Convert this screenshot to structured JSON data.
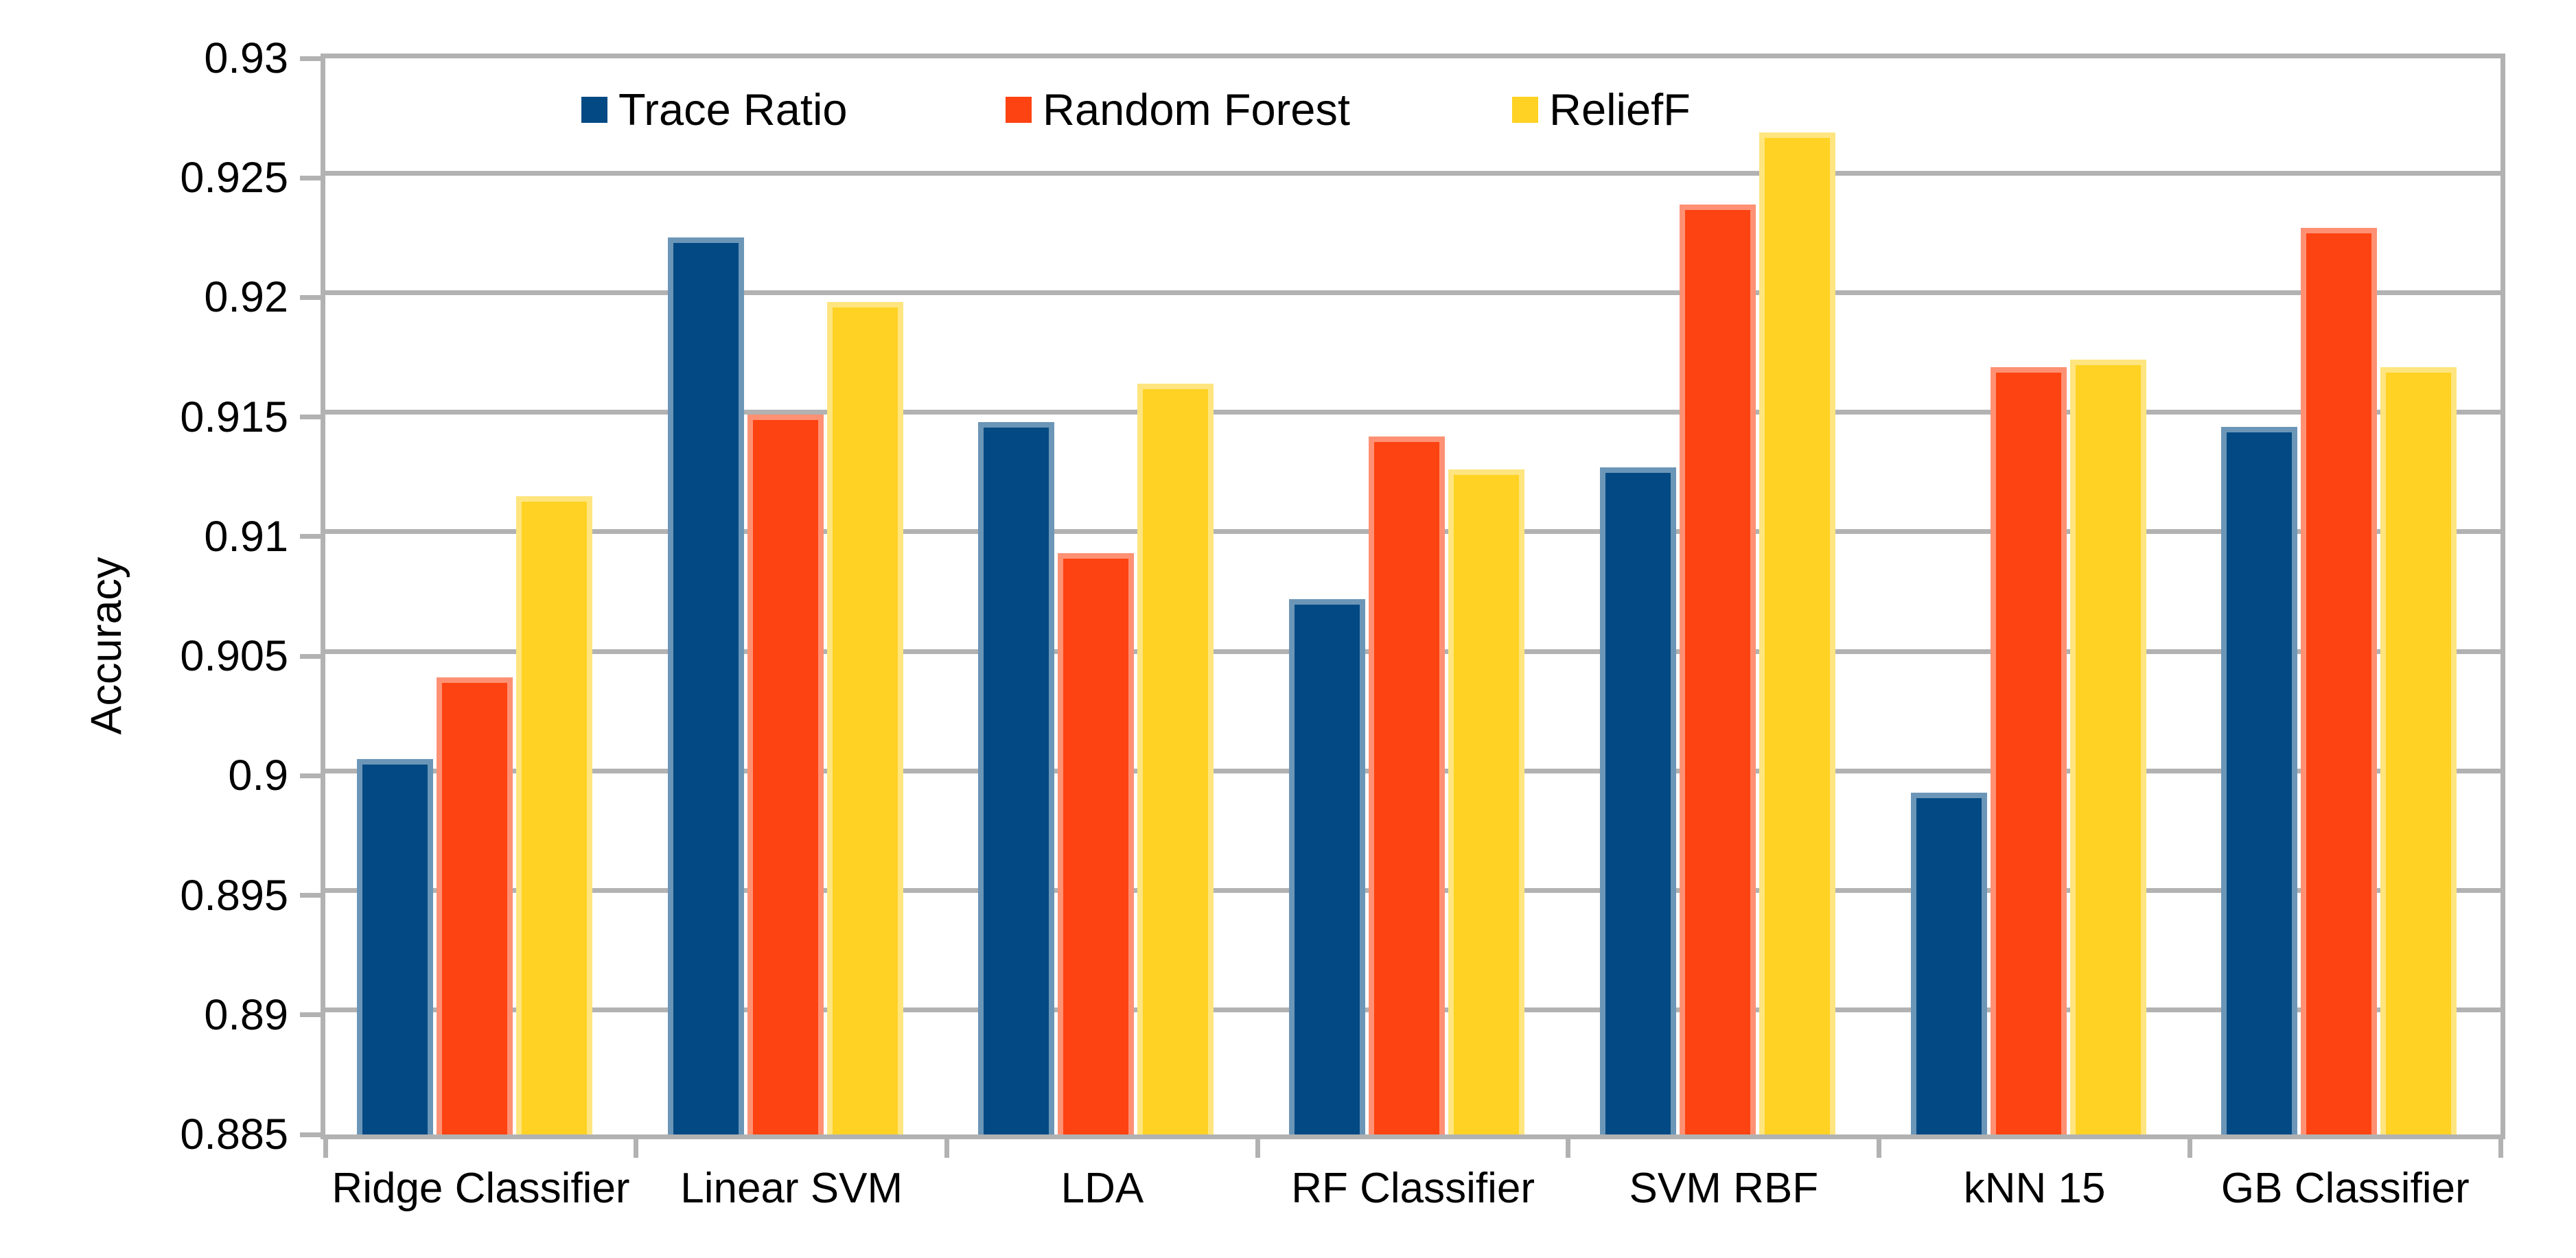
{
  "chart_data": {
    "type": "bar",
    "title": "",
    "xlabel": "",
    "ylabel": "Accuracy",
    "categories": [
      "Ridge Classifier",
      "Linear SVM",
      "LDA",
      "RF Classifier",
      "SVM RBF",
      "kNN 15",
      "GB Classifier"
    ],
    "series": [
      {
        "name": "Trace Ratio",
        "color": "#034a84",
        "values": [
          0.9007,
          0.9225,
          0.9148,
          0.9074,
          0.9129,
          0.8993,
          0.9146
        ]
      },
      {
        "name": "Random Forest",
        "color": "#fd4311",
        "values": [
          0.9041,
          0.9151,
          0.9093,
          0.9142,
          0.9239,
          0.9171,
          0.9229
        ]
      },
      {
        "name": "ReliefF",
        "color": "#ffd223",
        "values": [
          0.9117,
          0.9198,
          0.9164,
          0.9128,
          0.9269,
          0.9174,
          0.9171
        ]
      }
    ],
    "ylim": [
      0.885,
      0.93
    ],
    "ytick_step": 0.005,
    "ytick_labels": [
      "0.93",
      "0.925",
      "0.92",
      "0.915",
      "0.91",
      "0.905",
      "0.9",
      "0.895",
      "0.89",
      "0.885"
    ],
    "grid": "horizontal",
    "legend_position": "top",
    "legend_entries": [
      "Trace Ratio",
      "Random Forest",
      "ReliefF"
    ]
  },
  "colors": {
    "background": "#ffffff",
    "grid": "#b2b2b2",
    "text": "#000000"
  }
}
